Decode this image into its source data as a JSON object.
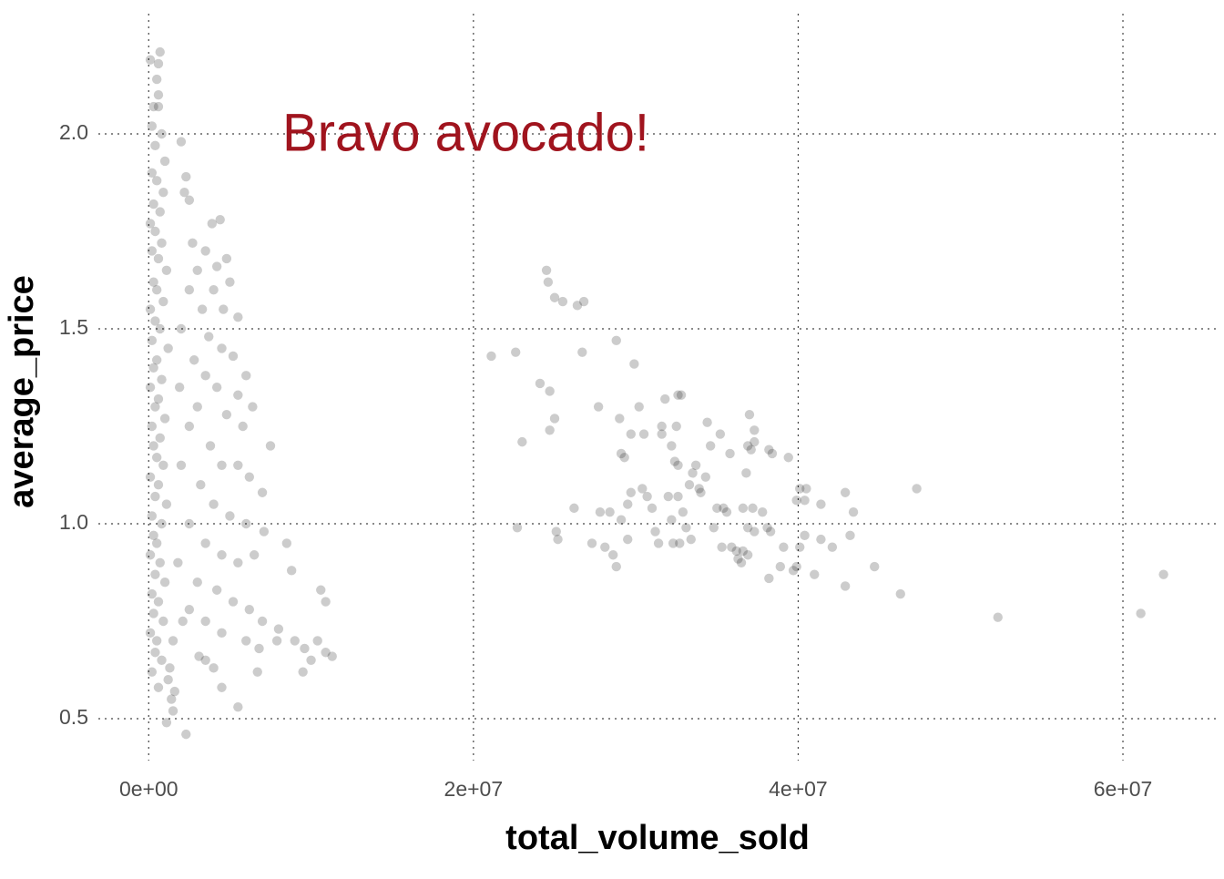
{
  "chart_data": {
    "type": "scatter",
    "x_label": "total_volume_sold",
    "y_label": "average_price",
    "annotation": "Bravo avocado!",
    "color": "#000000",
    "opacity": 0.2,
    "grid": true,
    "xlim": [
      -3100000,
      66000000
    ],
    "ylim": [
      0.4,
      2.3
    ],
    "xticks": [
      {
        "value": 0,
        "label": "0e+00"
      },
      {
        "value": 20000000,
        "label": "2e+07"
      },
      {
        "value": 40000000,
        "label": "4e+07"
      },
      {
        "value": 60000000,
        "label": "6e+07"
      }
    ],
    "yticks": [
      0.5,
      {
        "value": 1.0,
        "label": "1.0"
      },
      1.5,
      {
        "value": 2.0,
        "label": "2.0"
      }
    ],
    "x": [
      21100000.0,
      22600000.0,
      23000000.0,
      22700000.0,
      24500000.0,
      24600000.0,
      25000000.0,
      25500000.0,
      26400000.0,
      26800000.0,
      24100000.0,
      24700000.0,
      25000000.0,
      24700000.0,
      25100000.0,
      25200000.0,
      26700000.0,
      26200000.0,
      27300000.0,
      27700000.0,
      27800000.0,
      28100000.0,
      28800000.0,
      29000000.0,
      29100000.0,
      29300000.0,
      28400000.0,
      28600000.0,
      28800000.0,
      29500000.0,
      29100000.0,
      29500000.0,
      29700000.0,
      29900000.0,
      29700000.0,
      30200000.0,
      30500000.0,
      30400000.0,
      30700000.0,
      31000000.0,
      31200000.0,
      31400000.0,
      31600000.0,
      31800000.0,
      31600000.0,
      32000000.0,
      32200000.0,
      32300000.0,
      32600000.0,
      32800000.0,
      32500000.0,
      32200000.0,
      32400000.0,
      32600000.0,
      32600000.0,
      32700000.0,
      32900000.0,
      33100000.0,
      33400000.0,
      33300000.0,
      33700000.0,
      33900000.0,
      34000000.0,
      33500000.0,
      34300000.0,
      34400000.0,
      34600000.0,
      34800000.0,
      35200000.0,
      35000000.0,
      35400000.0,
      35600000.0,
      35800000.0,
      35300000.0,
      35900000.0,
      36200000.0,
      36300000.0,
      36500000.0,
      36600000.0,
      36900000.0,
      36600000.0,
      36800000.0,
      37000000.0,
      36900000.0,
      37100000.0,
      37300000.0,
      37300000.0,
      37200000.0,
      36900000.0,
      37300000.0,
      37800000.0,
      38100000.0,
      38300000.0,
      38200000.0,
      38400000.0,
      38200000.0,
      38900000.0,
      39100000.0,
      39400000.0,
      39700000.0,
      39900000.0,
      40100000.0,
      39900000.0,
      40100000.0,
      40500000.0,
      40400000.0,
      40400000.0,
      41000000.0,
      41400000.0,
      41400000.0,
      42100000.0,
      42900000.0,
      43400000.0,
      43200000.0,
      42900000.0,
      44700000.0,
      46300000.0,
      47300000.0,
      52300000.0,
      61100000.0,
      62500000.0,
      100000.0,
      700000.0,
      600000.0,
      500000.0,
      600000.0,
      300000.0,
      600000.0,
      200000.0,
      800000.0,
      400000.0,
      1000000.0,
      200000.0,
      500000.0,
      900000.0,
      300000.0,
      700000.0,
      100000.0,
      400000.0,
      800000.0,
      200000.0,
      600000.0,
      1100000.0,
      300000.0,
      500000.0,
      900000.0,
      100000.0,
      400000.0,
      700000.0,
      200000.0,
      1200000.0,
      500000.0,
      300000.0,
      800000.0,
      100000.0,
      600000.0,
      400000.0,
      1000000.0,
      200000.0,
      700000.0,
      300000.0,
      500000.0,
      900000.0,
      100000.0,
      600000.0,
      400000.0,
      1100000.0,
      200000.0,
      800000.0,
      300000.0,
      500000.0,
      100000.0,
      700000.0,
      400000.0,
      1000000.0,
      200000.0,
      600000.0,
      300000.0,
      900000.0,
      100000.0,
      500000.0,
      400000.0,
      800000.0,
      200000.0,
      1200000.0,
      600000.0,
      1400000.0,
      1500000.0,
      1100000.0,
      2300000.0,
      1600000.0,
      1300000.0,
      1500000.0,
      2000000.0,
      2300000.0,
      2200000.0,
      2500000.0,
      3900000.0,
      4400000.0,
      2700000.0,
      3500000.0,
      4200000.0,
      5000000.0,
      4800000.0,
      3000000.0,
      2500000.0,
      4000000.0,
      4600000.0,
      5500000.0,
      3300000.0,
      2000000.0,
      3700000.0,
      4500000.0,
      5200000.0,
      6000000.0,
      2800000.0,
      3500000.0,
      4200000.0,
      5500000.0,
      6400000.0,
      3000000.0,
      4800000.0,
      5800000.0,
      7500000.0,
      2500000.0,
      3800000.0,
      4500000.0,
      5500000.0,
      6200000.0,
      7000000.0,
      3200000.0,
      4000000.0,
      5000000.0,
      6000000.0,
      7100000.0,
      2500000.0,
      3500000.0,
      4500000.0,
      5500000.0,
      6500000.0,
      8500000.0,
      8800000.0,
      3000000.0,
      4200000.0,
      5200000.0,
      6200000.0,
      7000000.0,
      8000000.0,
      2500000.0,
      3500000.0,
      4500000.0,
      6000000.0,
      6800000.0,
      7900000.0,
      9000000.0,
      9600000.0,
      10400000.0,
      10900000.0,
      11300000.0,
      10600000.0,
      10900000.0,
      10000000.0,
      9500000.0,
      3500000.0,
      4000000.0,
      4500000.0,
      5500000.0,
      6700000.0,
      3100000.0,
      1800000.0,
      2000000.0,
      1900000.0,
      2100000.0
    ],
    "values": [
      1.43,
      1.44,
      1.21,
      0.99,
      1.65,
      1.62,
      1.58,
      1.57,
      1.56,
      1.57,
      1.36,
      1.34,
      1.27,
      1.24,
      0.98,
      0.96,
      1.44,
      1.04,
      0.95,
      1.3,
      1.03,
      0.94,
      1.47,
      1.27,
      1.18,
      1.17,
      1.03,
      0.92,
      0.89,
      0.96,
      1.01,
      1.05,
      1.08,
      1.41,
      1.23,
      1.3,
      1.23,
      1.09,
      1.07,
      1.04,
      0.98,
      0.95,
      1.23,
      1.32,
      1.25,
      1.07,
      1.01,
      0.95,
      1.33,
      1.33,
      1.25,
      1.2,
      1.16,
      1.15,
      1.07,
      0.95,
      1.03,
      0.99,
      0.96,
      1.1,
      1.15,
      1.09,
      1.08,
      1.13,
      1.12,
      1.26,
      1.2,
      0.99,
      1.23,
      1.04,
      1.04,
      1.03,
      1.18,
      0.94,
      0.94,
      0.93,
      0.91,
      0.9,
      0.93,
      0.92,
      1.04,
      1.13,
      1.28,
      1.2,
      1.19,
      1.24,
      1.21,
      1.04,
      0.99,
      0.98,
      1.03,
      0.99,
      0.98,
      1.19,
      1.18,
      0.86,
      0.89,
      0.94,
      1.17,
      0.88,
      0.89,
      0.94,
      1.06,
      1.09,
      1.09,
      0.97,
      1.06,
      0.87,
      1.05,
      0.96,
      0.94,
      1.08,
      1.03,
      0.97,
      0.84,
      0.89,
      0.82,
      1.09,
      0.76,
      0.77,
      0.87,
      2.19,
      2.21,
      2.18,
      2.14,
      2.1,
      2.07,
      2.07,
      2.02,
      2.0,
      1.97,
      1.93,
      1.9,
      1.88,
      1.85,
      1.82,
      1.8,
      1.77,
      1.75,
      1.72,
      1.7,
      1.68,
      1.65,
      1.62,
      1.6,
      1.57,
      1.55,
      1.52,
      1.5,
      1.47,
      1.45,
      1.42,
      1.4,
      1.37,
      1.35,
      1.32,
      1.3,
      1.27,
      1.25,
      1.22,
      1.2,
      1.17,
      1.15,
      1.12,
      1.1,
      1.07,
      1.05,
      1.02,
      1.0,
      0.97,
      0.95,
      0.92,
      0.9,
      0.87,
      0.85,
      0.82,
      0.8,
      0.77,
      0.75,
      0.72,
      0.7,
      0.67,
      0.65,
      0.62,
      0.6,
      0.58,
      0.55,
      0.52,
      0.49,
      0.46,
      0.57,
      0.63,
      0.7,
      1.98,
      1.89,
      1.85,
      1.83,
      1.77,
      1.78,
      1.72,
      1.7,
      1.66,
      1.62,
      1.68,
      1.65,
      1.6,
      1.6,
      1.55,
      1.53,
      1.55,
      1.5,
      1.48,
      1.45,
      1.43,
      1.38,
      1.42,
      1.38,
      1.35,
      1.33,
      1.3,
      1.3,
      1.28,
      1.25,
      1.2,
      1.25,
      1.2,
      1.15,
      1.15,
      1.12,
      1.08,
      1.1,
      1.05,
      1.02,
      1.0,
      0.98,
      1.0,
      0.95,
      0.92,
      0.9,
      0.92,
      0.95,
      0.88,
      0.85,
      0.83,
      0.8,
      0.78,
      0.75,
      0.73,
      0.78,
      0.75,
      0.72,
      0.7,
      0.68,
      0.7,
      0.7,
      0.68,
      0.7,
      0.67,
      0.66,
      0.83,
      0.8,
      0.65,
      0.62,
      0.65,
      0.63,
      0.58,
      0.53,
      0.62,
      0.66,
      0.9,
      1.15,
      1.35,
      0.75
    ]
  }
}
